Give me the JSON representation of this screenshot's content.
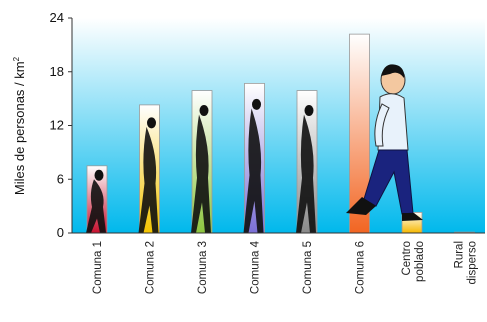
{
  "chart_data": {
    "type": "bar",
    "ylabel": "Miles de personas / km",
    "ylabel_superscript": "2",
    "ylim": [
      0,
      24
    ],
    "yticks": [
      "0",
      "6",
      "12",
      "18",
      "24"
    ],
    "grid": false,
    "categories": [
      [
        "Comuna 1"
      ],
      [
        "Comuna 2"
      ],
      [
        "Comuna 3"
      ],
      [
        "Comuna 4"
      ],
      [
        "Comuna 5"
      ],
      [
        "Comuna 6"
      ],
      [
        "Centro",
        "poblado"
      ],
      [
        "Rural",
        "disperso"
      ]
    ],
    "values": [
      7.5,
      14.3,
      15.9,
      16.7,
      15.9,
      22.2,
      2.3,
      0.1
    ],
    "bar_gradients": [
      [
        "#ffffff",
        "#c8102e"
      ],
      [
        "#ffffff",
        "#f4c400"
      ],
      [
        "#ffffff",
        "#8dc63f"
      ],
      [
        "#ffffff",
        "#7b6fd6"
      ],
      [
        "#ffffff",
        "#8a8a8a"
      ],
      [
        "#ffffff",
        "#f26522"
      ],
      [
        "#ffffff",
        "#f6b800"
      ],
      [
        "#ffffff",
        "#dddddd"
      ]
    ],
    "plot_background": [
      "#ffffff",
      "#00b8ec"
    ]
  }
}
